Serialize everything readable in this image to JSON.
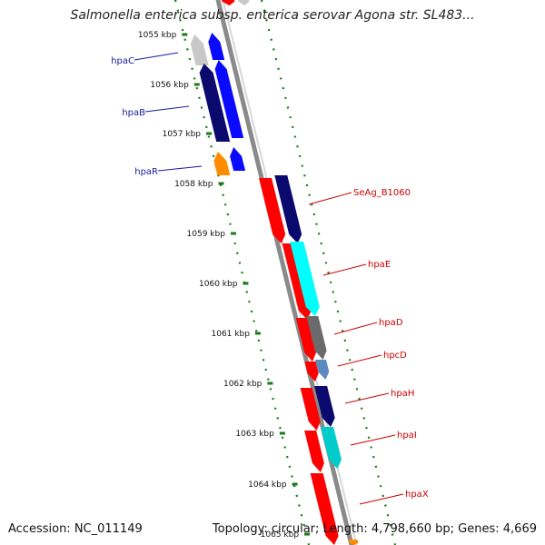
{
  "title": "Salmonella enterica subsp. enterica serovar Agona str. SL483...",
  "accession_text": "Accession: NC_011149",
  "topology_text": "Topology: circular; Length: 4,798,660 bp; Genes: 4,669",
  "kbp_ticks": [
    "1055 kbp",
    "1056 kbp",
    "1057 kbp",
    "1058 kbp",
    "1059 kbp",
    "1060 kbp",
    "1061 kbp",
    "1062 kbp",
    "1063 kbp",
    "1064 kbp",
    "1065 kbp"
  ],
  "genes_left": [
    "hpaC",
    "hpaB",
    "hpaR"
  ],
  "genes_right": [
    "SeAg_B1060",
    "hpaE",
    "hpaD",
    "hpcD",
    "hpaH",
    "hpaI",
    "hpaX"
  ],
  "colors": {
    "left_label": "#1a1aa0",
    "right_label": "#cc0000",
    "tick_green": "#1a7a1a",
    "red": "#ff0000",
    "navy": "#0a0a6e",
    "blue": "#0a0aff",
    "cyan": "#00ffff",
    "grey": "#6a6a6a",
    "steel": "#5a8ac0",
    "teal": "#00cccc",
    "orange": "#ff8c00",
    "light_grey": "#c8c8c8"
  }
}
